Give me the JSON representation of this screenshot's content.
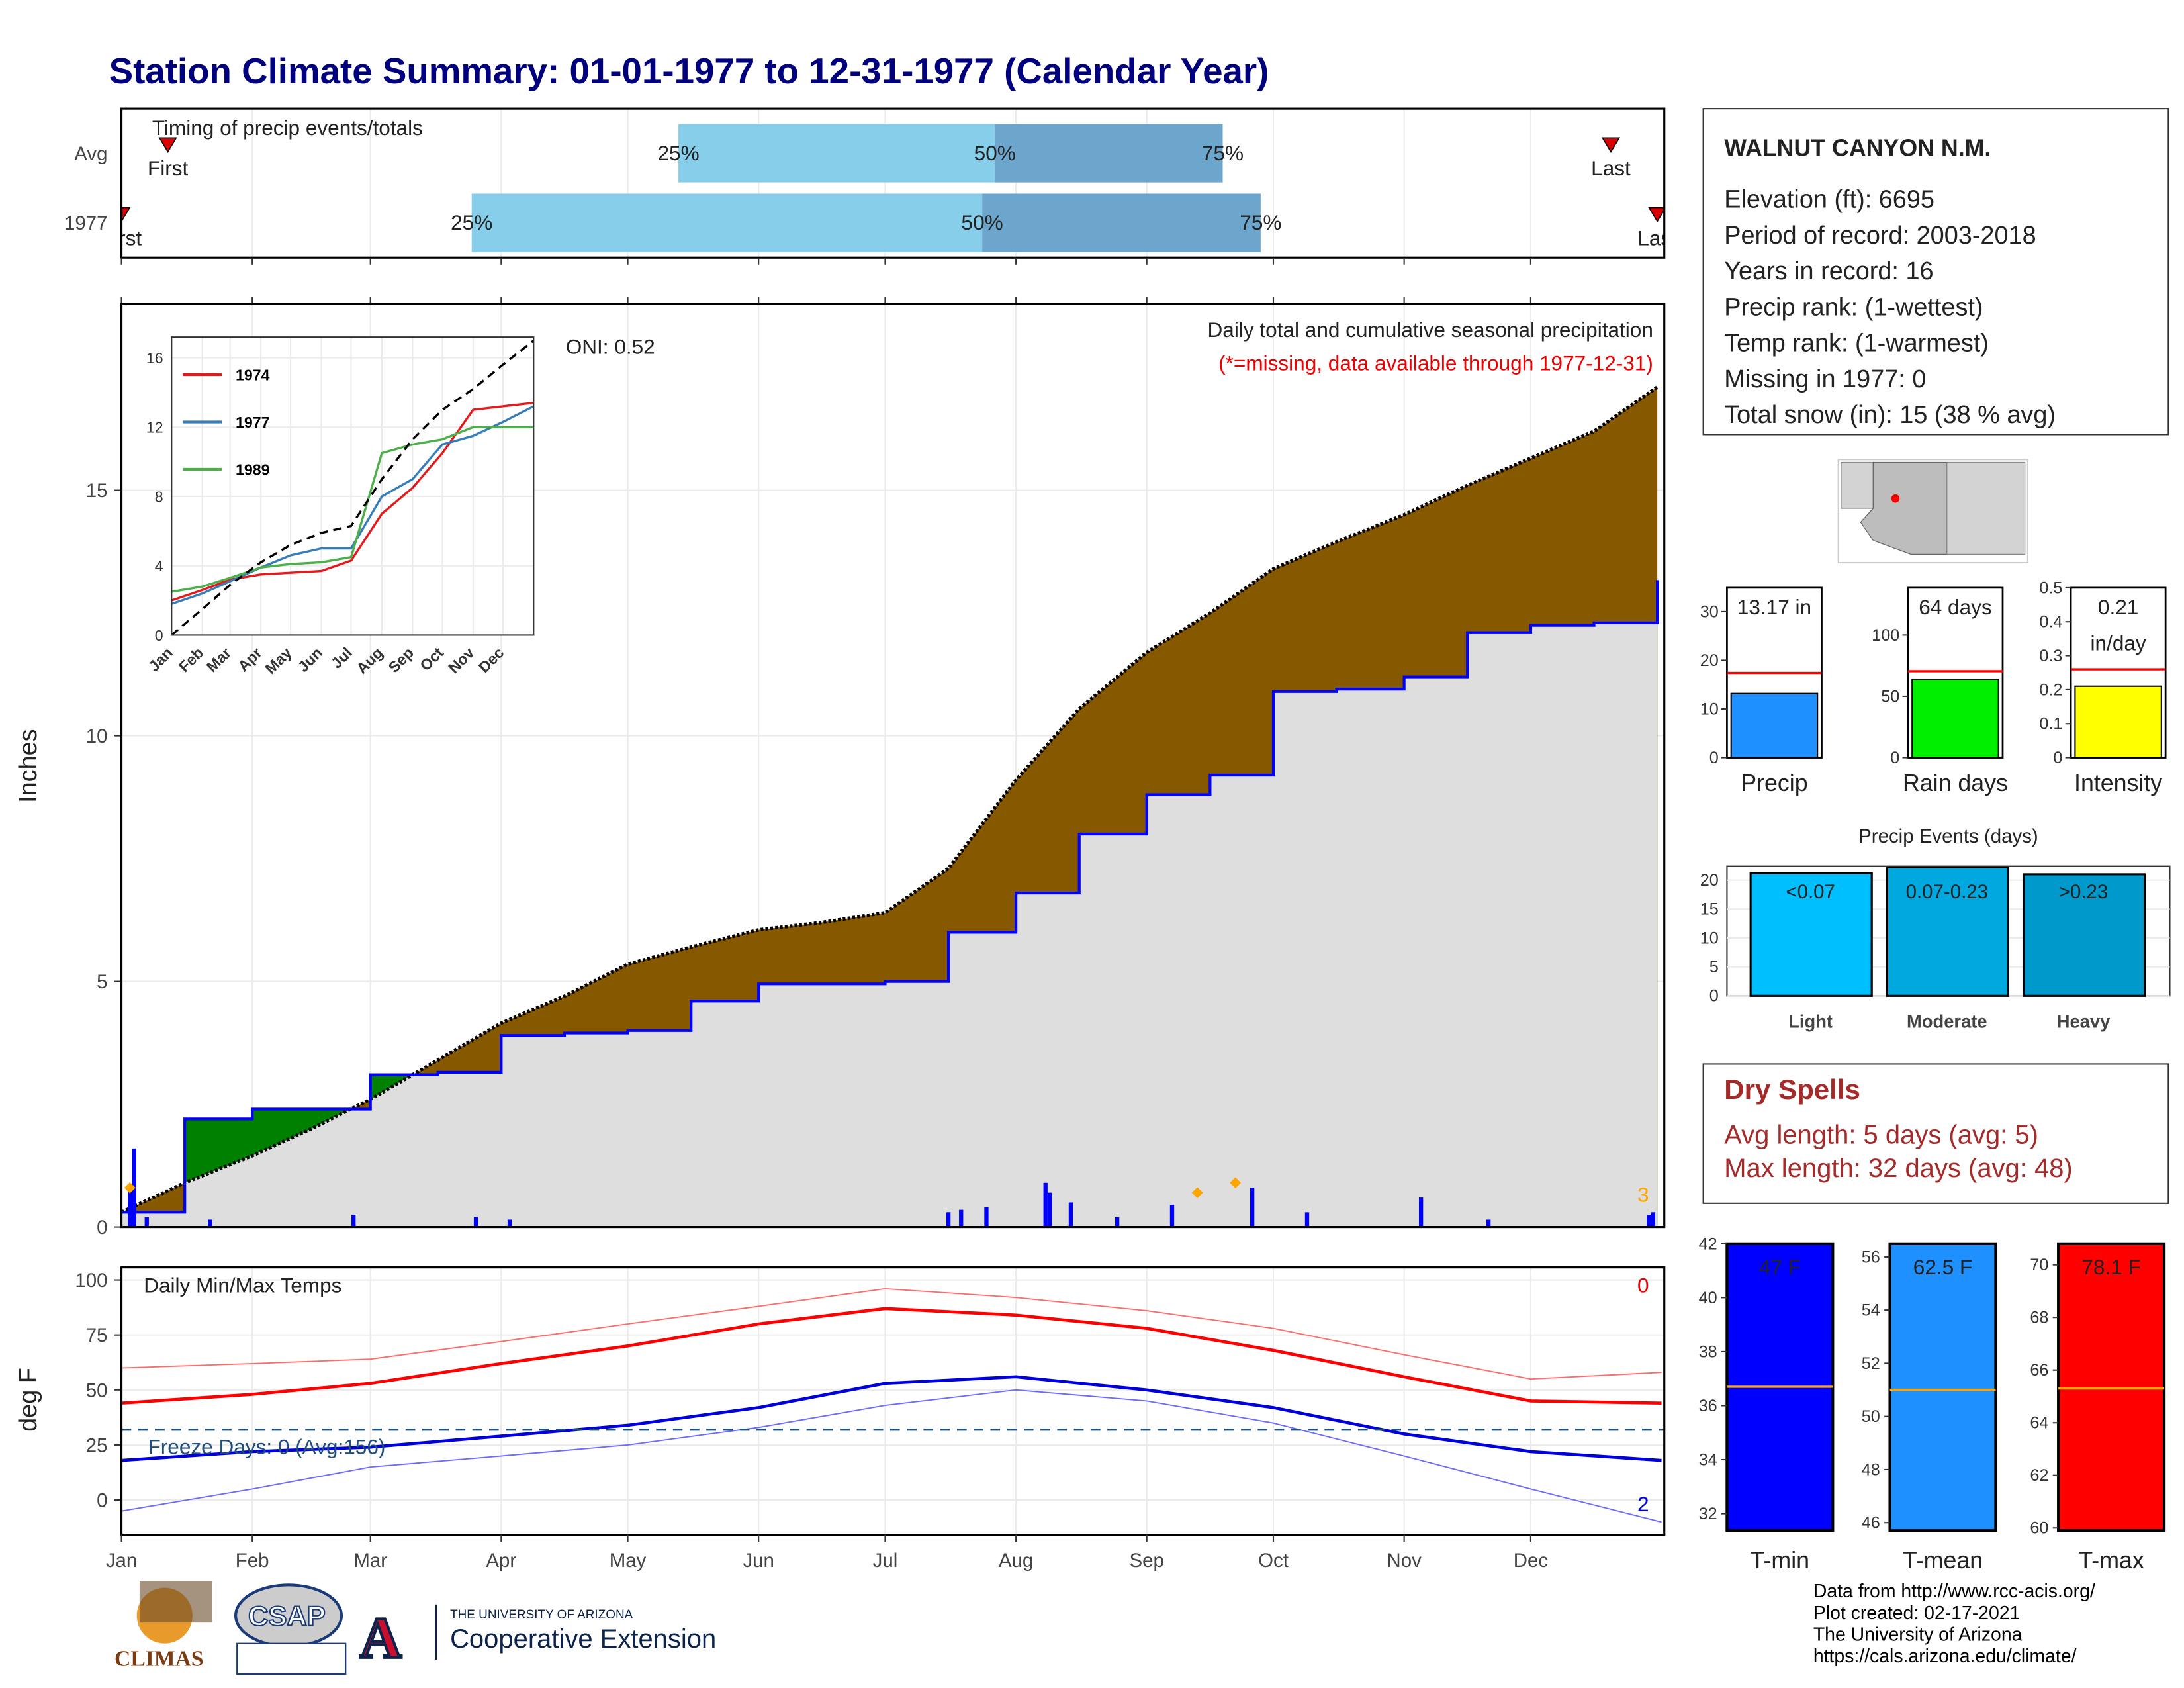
{
  "title": "Station Climate Summary: 01-01-1977 to 12-31-1977 (Calendar Year)",
  "months": [
    "Jan",
    "Feb",
    "Mar",
    "Apr",
    "May",
    "Jun",
    "Jul",
    "Aug",
    "Sep",
    "Oct",
    "Nov",
    "Dec"
  ],
  "month_start_days": [
    0,
    31,
    59,
    90,
    120,
    151,
    181,
    212,
    243,
    273,
    304,
    334
  ],
  "xlim": [
    0,
    365
  ],
  "timing": {
    "label": "Timing of precip events/totals",
    "first_label": "First",
    "last_label": "Last",
    "q_labels": [
      "25%",
      "50%",
      "75%"
    ],
    "rows": [
      {
        "name": "Avg",
        "first": 11,
        "q25": 132,
        "q50": 207,
        "q75": 261,
        "last": 353
      },
      {
        "name": "1977",
        "first": 0,
        "q25": 83,
        "q50": 204,
        "q75": 270,
        "last": 364
      }
    ]
  },
  "precip": {
    "ylabel": "Inches",
    "ylim": [
      0,
      18.8
    ],
    "yticks": [
      0,
      5,
      10,
      15
    ],
    "title": "Daily total and cumulative seasonal precipitation",
    "note": "(*=missing, data available through 1977-12-31)",
    "oni": "ONI: 0.52",
    "days": [
      0,
      15,
      31,
      45,
      59,
      75,
      90,
      105,
      120,
      135,
      151,
      166,
      181,
      196,
      212,
      227,
      243,
      258,
      273,
      288,
      304,
      319,
      334,
      349,
      364
    ],
    "avg": [
      0.3,
      0.9,
      1.45,
      2.0,
      2.6,
      3.4,
      4.15,
      4.7,
      5.35,
      5.7,
      6.05,
      6.2,
      6.4,
      7.3,
      9.1,
      10.55,
      11.7,
      12.5,
      13.4,
      13.95,
      14.5,
      15.1,
      15.65,
      16.2,
      17.1
    ],
    "year": [
      0.3,
      2.2,
      2.4,
      2.4,
      3.1,
      3.15,
      3.9,
      3.95,
      4.0,
      4.6,
      4.95,
      4.95,
      5.0,
      6.0,
      6.8,
      8.0,
      8.8,
      9.2,
      10.9,
      10.95,
      11.2,
      12.1,
      12.25,
      12.3,
      13.17
    ],
    "daily": {
      "days": [
        2,
        3,
        6,
        21,
        55,
        84,
        92,
        196,
        199,
        205,
        219,
        220,
        225,
        236,
        249,
        268,
        281,
        308,
        324,
        362,
        363
      ],
      "values": [
        0.8,
        1.6,
        0.2,
        0.15,
        0.25,
        0.2,
        0.15,
        0.3,
        0.35,
        0.4,
        0.9,
        0.7,
        0.5,
        0.2,
        0.45,
        0.8,
        0.3,
        0.6,
        0.15,
        0.25,
        0.3
      ]
    },
    "records": {
      "days": [
        2,
        255,
        264
      ],
      "values": [
        0.8,
        0.7,
        0.9
      ]
    },
    "record_count": 3
  },
  "inset": {
    "x": [
      0,
      31,
      59,
      90,
      120,
      151,
      181,
      212,
      243,
      273,
      304,
      334,
      365
    ],
    "ylim": [
      0,
      17.2
    ],
    "yticks": [
      0,
      4,
      8,
      12,
      16
    ],
    "avg": [
      0,
      1.5,
      2.9,
      4.2,
      5.2,
      5.9,
      6.3,
      9.0,
      11.3,
      13.0,
      14.2,
      15.6,
      17.0
    ],
    "series": [
      {
        "name": "1974",
        "color": "#e41a1c",
        "values": [
          2.0,
          2.6,
          3.2,
          3.5,
          3.6,
          3.7,
          4.3,
          7.0,
          8.5,
          10.5,
          13.0,
          13.2,
          13.4
        ]
      },
      {
        "name": "1977",
        "color": "#377eb8",
        "values": [
          1.8,
          2.4,
          3.1,
          3.9,
          4.6,
          5.0,
          5.0,
          8.0,
          9.0,
          11.0,
          11.5,
          12.3,
          13.2
        ]
      },
      {
        "name": "1989",
        "color": "#4daf4a",
        "values": [
          2.5,
          2.8,
          3.3,
          3.9,
          4.1,
          4.2,
          4.5,
          10.5,
          11.0,
          11.3,
          12.0,
          12.0,
          12.0
        ]
      }
    ]
  },
  "temps": {
    "ylabel": "deg F",
    "title": "Daily Min/Max Temps",
    "ylim": [
      -15.8,
      105.7
    ],
    "yticks": [
      0,
      25,
      50,
      75,
      100
    ],
    "x": [
      0,
      31,
      59,
      90,
      120,
      151,
      181,
      212,
      243,
      273,
      304,
      334,
      365
    ],
    "normal_max": [
      44,
      48,
      53,
      62,
      70,
      80,
      87,
      84,
      78,
      68,
      56,
      45,
      44
    ],
    "normal_min": [
      18,
      22,
      24,
      29,
      34,
      42,
      53,
      56,
      50,
      42,
      30,
      22,
      18
    ],
    "max": [
      60,
      62,
      64,
      72,
      80,
      88,
      96,
      92,
      86,
      78,
      66,
      55,
      58
    ],
    "min": [
      -5,
      5,
      15,
      20,
      25,
      33,
      43,
      50,
      45,
      35,
      20,
      5,
      -10
    ],
    "freeze": 32,
    "freeze_label": "Freeze Days: 0 (Avg:156)",
    "max_records": 0,
    "min_records": 2
  },
  "station": {
    "name": "WALNUT CANYON N.M.",
    "lines": [
      "Elevation (ft): 6695",
      "Period of record: 2003-2018",
      "Years in record: 16",
      "Precip rank:  (1-wettest)",
      "Temp rank:  (1-warmest)",
      "Missing in 1977: 0",
      "Total snow (in): 15 (38 % avg)"
    ]
  },
  "summary_bars": [
    {
      "label": "Precip",
      "ylim": [
        0,
        34.9
      ],
      "yticks": [
        0,
        10,
        20,
        30
      ],
      "value": 13.17,
      "value_label": [
        "13.17 in"
      ],
      "avg": 17.4,
      "color": "#1e90ff"
    },
    {
      "label": "Rain days",
      "ylim": [
        0,
        138.6
      ],
      "yticks": [
        0,
        50,
        100
      ],
      "value": 64,
      "value_label": [
        "64 days"
      ],
      "avg": 70.5,
      "color": "#00ee00"
    },
    {
      "label": "Intensity",
      "ylim": [
        0,
        0.5
      ],
      "yticks": [
        0.0,
        0.1,
        0.2,
        0.3,
        0.4,
        0.5
      ],
      "value": 0.21,
      "value_label": [
        "0.21",
        "in/day"
      ],
      "avg": 0.26,
      "color": "#ffff00"
    }
  ],
  "events": {
    "title": "Precip Events (days)",
    "ylim": [
      0,
      22.4
    ],
    "yticks": [
      0,
      5,
      10,
      15,
      20
    ],
    "categories": [
      "Light",
      "Moderate",
      "Heavy"
    ],
    "values": [
      21.2,
      22.2,
      21
    ],
    "value_labels": [
      "<0.07",
      "0.07-0.23",
      ">0.23"
    ],
    "colors": [
      "#00bfff",
      "#00a8e0",
      "#0099cc"
    ]
  },
  "dry_spells": {
    "title": "Dry Spells",
    "lines": [
      "Avg length: 5 days (avg: 5)",
      "Max length: 32 days (avg: 48)"
    ]
  },
  "temp_bars": [
    {
      "label": "T-min",
      "ylim": [
        31.37,
        42
      ],
      "yticks": [
        32,
        34,
        36,
        38,
        40,
        42
      ],
      "value": 47,
      "value_label": "47 F",
      "avg": 36.7,
      "color": "#0000ff"
    },
    {
      "label": "T-mean",
      "ylim": [
        45.7,
        56.5
      ],
      "yticks": [
        46,
        48,
        50,
        52,
        54,
        56
      ],
      "value": 62.5,
      "value_label": "62.5 F",
      "avg": 51.0,
      "color": "#1e90ff"
    },
    {
      "label": "T-max",
      "ylim": [
        59.9,
        70.8
      ],
      "yticks": [
        60,
        62,
        64,
        66,
        68,
        70
      ],
      "value": 78.1,
      "value_label": "78.1 F",
      "avg": 65.3,
      "color": "#ff0000"
    }
  ],
  "footer": [
    "Data from http://www.rcc-acis.org/",
    "Plot created: 02-17-2021",
    "The University of Arizona",
    "https://cals.arizona.edu/climate/"
  ],
  "logos": {
    "climas": "CLIMAS",
    "csap": "CSAP",
    "ua_small": "THE UNIVERSITY OF ARIZONA",
    "ua_big": "Cooperative Extension",
    "ua_letter": "A"
  }
}
